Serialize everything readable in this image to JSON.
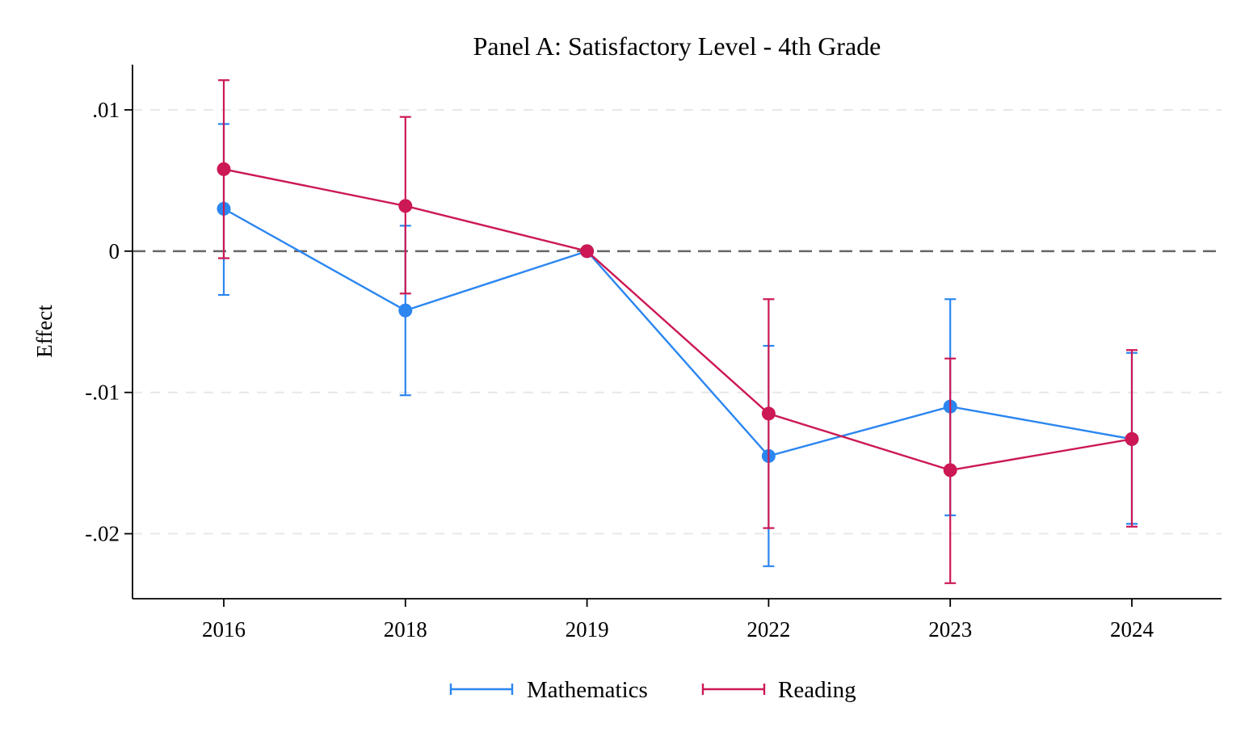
{
  "chart_data": {
    "type": "line",
    "title": "Panel A: Satisfactory Level - 4th Grade",
    "xlabel": "",
    "ylabel": "Effect",
    "categories": [
      "2016",
      "2018",
      "2019",
      "2022",
      "2023",
      "2024"
    ],
    "y_ticks": [
      0.01,
      0,
      -0.01,
      -0.02
    ],
    "y_tick_labels": [
      ".01",
      "0",
      "-.01",
      "-.02"
    ],
    "ylim": [
      -0.0246,
      0.0132
    ],
    "reference_line": 0,
    "grid": "horizontal dashed",
    "legend_position": "bottom",
    "series": [
      {
        "name": "Mathematics",
        "color": "#2b86f0",
        "values": [
          0.003,
          -0.0042,
          0.0,
          -0.0145,
          -0.011,
          -0.0133
        ],
        "ci_low": [
          -0.0031,
          -0.0102,
          0.0,
          -0.0223,
          -0.0187,
          -0.0193
        ],
        "ci_high": [
          0.009,
          0.0018,
          0.0,
          -0.0067,
          -0.0034,
          -0.0072
        ]
      },
      {
        "name": "Reading",
        "color": "#cc1854",
        "values": [
          0.0058,
          0.0032,
          0.0,
          -0.0115,
          -0.0155,
          -0.0133
        ],
        "ci_low": [
          -0.0005,
          -0.003,
          0.0,
          -0.0196,
          -0.0235,
          -0.0195
        ],
        "ci_high": [
          0.0121,
          0.0095,
          0.0,
          -0.0034,
          -0.0076,
          -0.007
        ]
      }
    ]
  }
}
